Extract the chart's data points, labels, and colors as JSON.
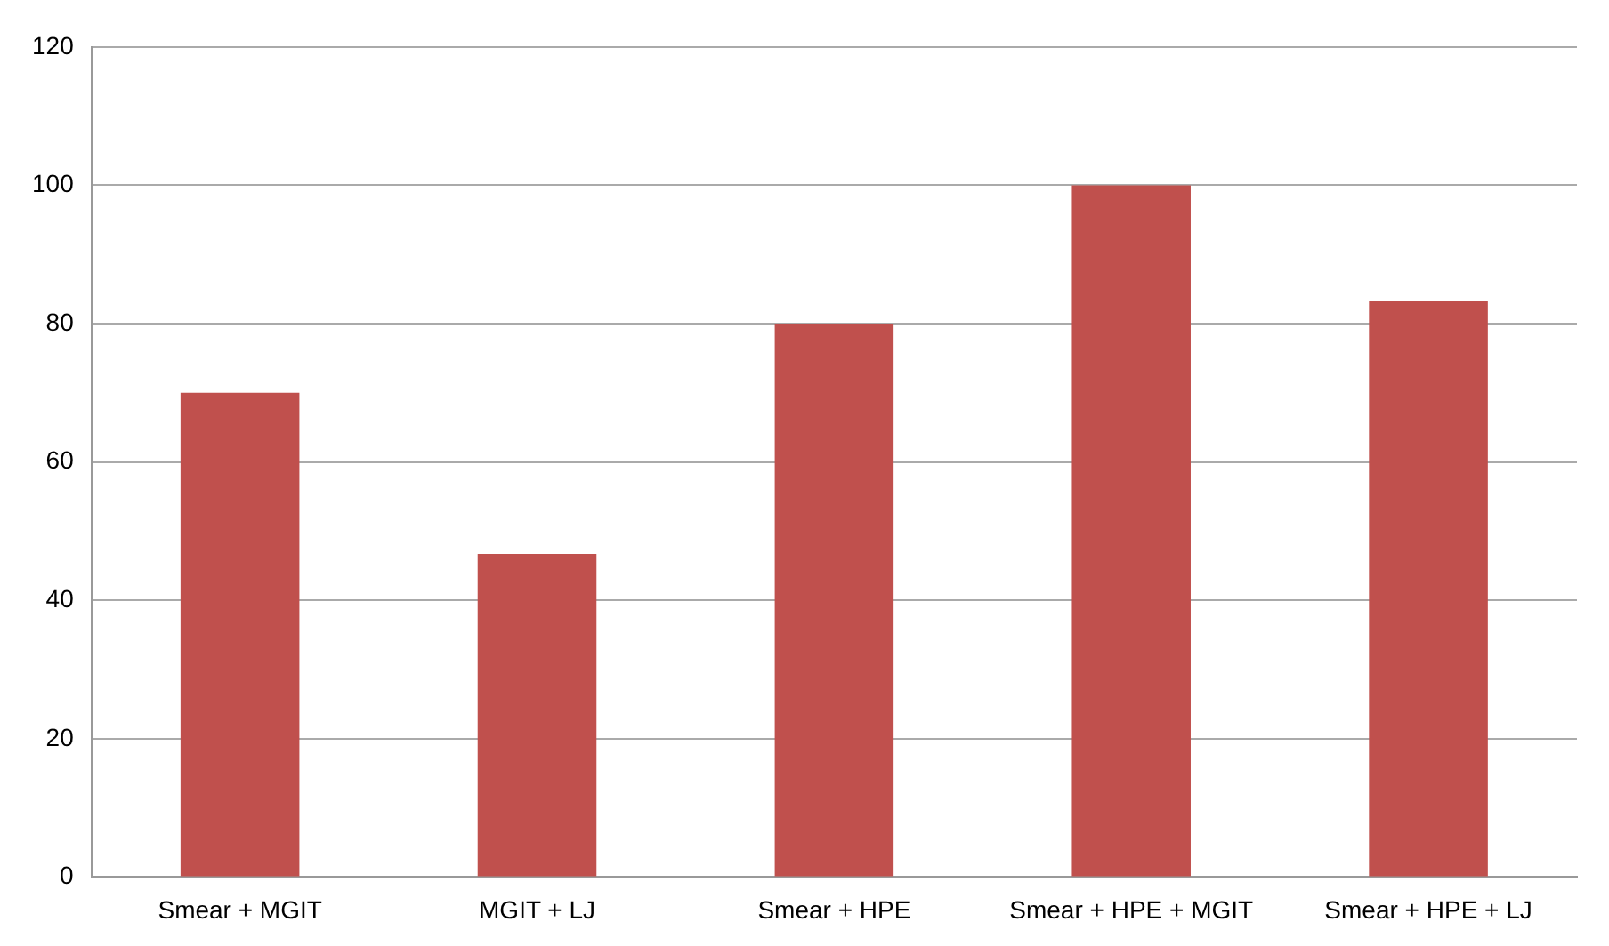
{
  "chart_data": {
    "type": "bar",
    "categories": [
      "Smear + MGIT",
      "MGIT + LJ",
      "Smear + HPE",
      "Smear + HPE + MGIT",
      "Smear + HPE + LJ"
    ],
    "values": [
      70,
      46.7,
      80,
      100,
      83.3
    ],
    "color": "#c0504d",
    "ylim": [
      0,
      120
    ],
    "yticks": [
      0,
      20,
      40,
      60,
      80,
      100,
      120
    ],
    "grid": "y",
    "legend": false
  }
}
